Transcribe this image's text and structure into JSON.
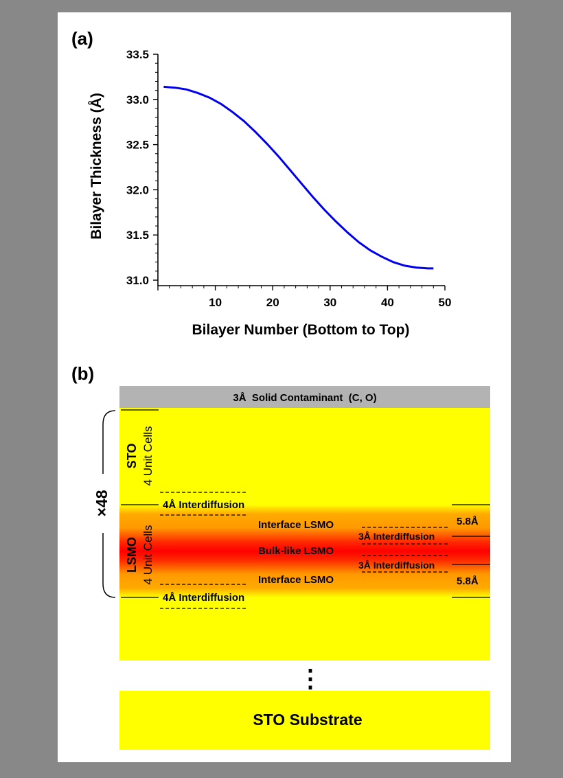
{
  "panel_a": {
    "label": "(a)"
  },
  "panel_b": {
    "label": "(b)",
    "contaminant_label": "3Å  Solid Contaminant  (C, O)",
    "repeat_label": "×48",
    "sto_name": "STO",
    "sto_cells": "4 Unit Cells",
    "lsmo_name": "LSMO",
    "lsmo_cells": "4 Unit Cells",
    "interdiffusion_4a": "4Å Interdiffusion",
    "interface_lsmo": "Interface LSMO",
    "bulk_like_lsmo": "Bulk-like LSMO",
    "interdiffusion_3a": "3Å Interdiffusion",
    "thickness_58": "5.8Å",
    "ellipsis": "⋮",
    "substrate_label": "STO Substrate",
    "colors": {
      "sto_yellow": "#ffff00",
      "lsmo_orange": "#ff9900",
      "bulk_red": "#ff0000",
      "contaminant_gray": "#b3b3b3"
    }
  },
  "chart_data": {
    "type": "line",
    "title": "",
    "xlabel": "Bilayer Number (Bottom to Top)",
    "ylabel": "Bilayer Thickness (Å)",
    "xlim": [
      0,
      50
    ],
    "ylim": [
      31.0,
      33.5
    ],
    "x_ticks": [
      "10",
      "20",
      "30",
      "40",
      "50"
    ],
    "y_ticks": [
      "31.0",
      "31.5",
      "32.0",
      "32.5",
      "33.0",
      "33.5"
    ],
    "line_color": "#0000ee",
    "grid": false,
    "series": [
      {
        "x": [
          1,
          3,
          5,
          7,
          9,
          11,
          13,
          15,
          17,
          19,
          21,
          23,
          25,
          27,
          29,
          31,
          33,
          35,
          37,
          39,
          41,
          43,
          45,
          47,
          48
        ],
        "y": [
          33.14,
          33.13,
          33.11,
          33.07,
          33.02,
          32.95,
          32.86,
          32.76,
          32.64,
          32.51,
          32.37,
          32.22,
          32.07,
          31.92,
          31.78,
          31.65,
          31.53,
          31.42,
          31.33,
          31.26,
          31.2,
          31.16,
          31.14,
          31.13,
          31.13
        ]
      }
    ]
  }
}
